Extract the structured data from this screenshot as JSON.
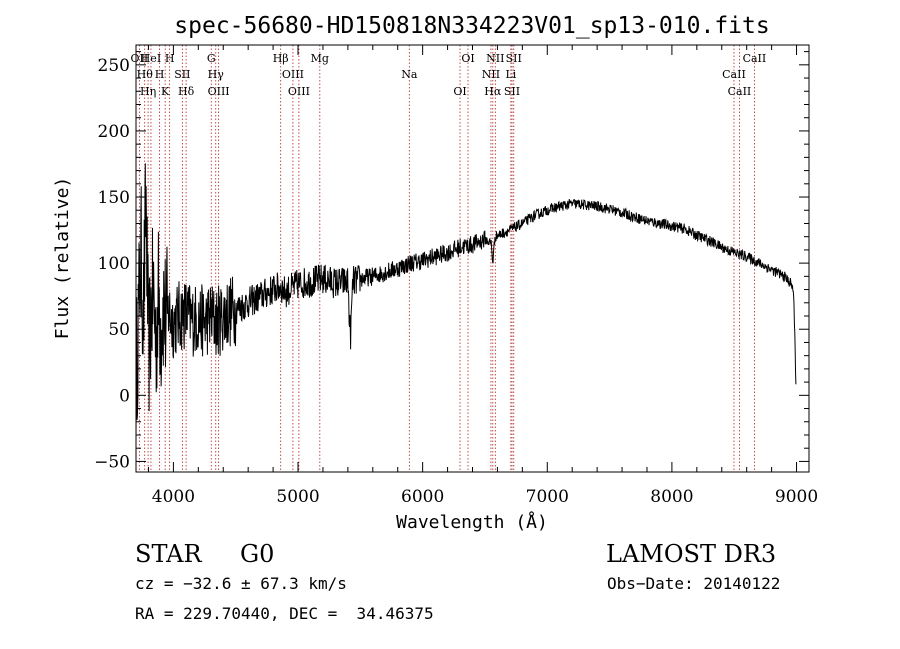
{
  "chart_data": {
    "type": "line",
    "title": "spec-56680-HD150818N334223V01_sp13-010.fits",
    "xlabel": "Wavelength (Å)",
    "ylabel": "Flux (relative)",
    "xlim": [
      3700,
      9100
    ],
    "ylim": [
      -58,
      265
    ],
    "x_ticks": [
      {
        "value": 4000,
        "label": "4000"
      },
      {
        "value": 5000,
        "label": "5000"
      },
      {
        "value": 6000,
        "label": "6000"
      },
      {
        "value": 7000,
        "label": "7000"
      },
      {
        "value": 8000,
        "label": "8000"
      },
      {
        "value": 9000,
        "label": "9000"
      }
    ],
    "y_ticks": [
      {
        "value": -50,
        "label": "−50"
      },
      {
        "value": 0,
        "label": "0"
      },
      {
        "value": 50,
        "label": "50"
      },
      {
        "value": 100,
        "label": "100"
      },
      {
        "value": 150,
        "label": "150"
      },
      {
        "value": 200,
        "label": "200"
      },
      {
        "value": 250,
        "label": "250"
      }
    ],
    "series": [
      {
        "name": "spectrum",
        "x": [
          3700,
          3740,
          3760,
          3780,
          3800,
          3820,
          3840,
          3860,
          3880,
          3900,
          3920,
          3940,
          3960,
          3980,
          4000,
          4050,
          4100,
          4150,
          4200,
          4250,
          4300,
          4340,
          4380,
          4420,
          4500,
          4600,
          4700,
          4800,
          4861,
          4900,
          5000,
          5100,
          5200,
          5300,
          5400,
          5420,
          5440,
          5500,
          5600,
          5700,
          5800,
          5900,
          6000,
          6100,
          6200,
          6300,
          6400,
          6500,
          6550,
          6563,
          6580,
          6650,
          6700,
          6800,
          6900,
          7000,
          7100,
          7200,
          7300,
          7400,
          7500,
          7600,
          7700,
          7800,
          7900,
          8000,
          8100,
          8200,
          8300,
          8400,
          8500,
          8600,
          8700,
          8800,
          8900,
          8950,
          8975,
          8985,
          8995
        ],
        "y": [
          10,
          110,
          60,
          150,
          30,
          60,
          80,
          40,
          75,
          50,
          70,
          55,
          65,
          58,
          55,
          60,
          62,
          57,
          58,
          55,
          60,
          55,
          58,
          62,
          65,
          70,
          75,
          80,
          82,
          78,
          84,
          86,
          88,
          85,
          86,
          42,
          86,
          88,
          90,
          93,
          96,
          100,
          102,
          105,
          108,
          112,
          114,
          118,
          115,
          100,
          120,
          123,
          125,
          130,
          136,
          140,
          143,
          145,
          144,
          143,
          141,
          138,
          135,
          132,
          130,
          128,
          126,
          121,
          117,
          112,
          108,
          105,
          100,
          95,
          90,
          85,
          80,
          50,
          10
        ]
      }
    ],
    "lines": [
      {
        "wavelength": 3727,
        "label": "OII"
      },
      {
        "wavelength": 3770,
        "label": "Hθ"
      },
      {
        "wavelength": 3797,
        "label": "Hη"
      },
      {
        "wavelength": 3820,
        "label": "HeI"
      },
      {
        "wavelength": 3889,
        "label": "H"
      },
      {
        "wavelength": 3934,
        "label": "K"
      },
      {
        "wavelength": 3970,
        "label": "H"
      },
      {
        "wavelength": 4072,
        "label": "SII"
      },
      {
        "wavelength": 4102,
        "label": "Hδ"
      },
      {
        "wavelength": 4304,
        "label": "G"
      },
      {
        "wavelength": 4340,
        "label": "Hγ"
      },
      {
        "wavelength": 4363,
        "label": "OIII"
      },
      {
        "wavelength": 4861,
        "label": "Hβ"
      },
      {
        "wavelength": 4959,
        "label": "OIII"
      },
      {
        "wavelength": 5007,
        "label": "OIII"
      },
      {
        "wavelength": 5175,
        "label": "Mg"
      },
      {
        "wavelength": 5893,
        "label": "Na"
      },
      {
        "wavelength": 6300,
        "label": "OI"
      },
      {
        "wavelength": 6364,
        "label": "OI"
      },
      {
        "wavelength": 6548,
        "label": "NII"
      },
      {
        "wavelength": 6563,
        "label": "Hα"
      },
      {
        "wavelength": 6583,
        "label": "NII"
      },
      {
        "wavelength": 6708,
        "label": "Li"
      },
      {
        "wavelength": 6717,
        "label": "SII"
      },
      {
        "wavelength": 6731,
        "label": "SII"
      },
      {
        "wavelength": 8498,
        "label": "CaII"
      },
      {
        "wavelength": 8542,
        "label": "CaII"
      },
      {
        "wavelength": 8662,
        "label": "CaII"
      }
    ],
    "colors": {
      "spectrum": "#000000",
      "line_marker": "#b22222",
      "axes": "#000000"
    }
  },
  "info": {
    "object_class": "STAR",
    "subclass": "G0",
    "survey": "LAMOST DR3",
    "cz": "cz = −32.6 ± 67.3 km/s",
    "obs_date": "Obs−Date: 20140122",
    "coords": "RA = 229.70440, DEC =  34.46375"
  }
}
